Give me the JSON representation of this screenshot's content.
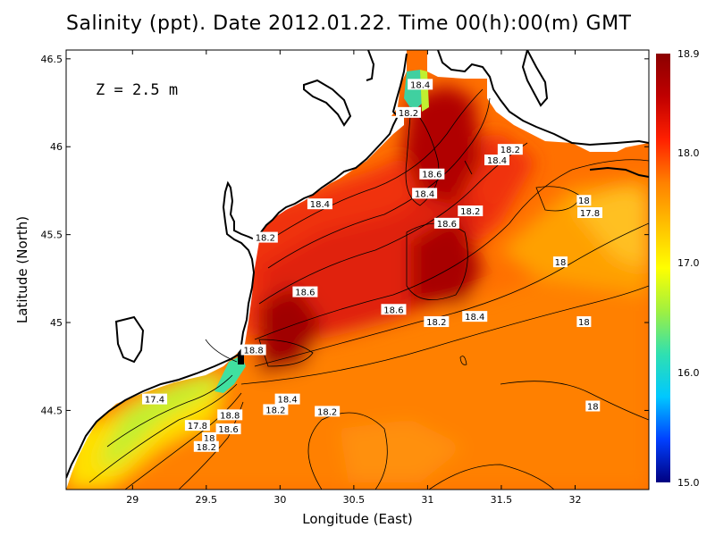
{
  "chart_data": {
    "type": "heatmap",
    "title": "Salinity (ppt). Date 2012.01.22. Time 00(h):00(m) GMT",
    "xlabel": "Longitude (East)",
    "ylabel": "Latitude (North)",
    "annotation": "Z = 2.5 m",
    "xlim": [
      28.55,
      32.5
    ],
    "ylim": [
      44.05,
      46.55
    ],
    "x_ticks": [
      29,
      29.5,
      30,
      30.5,
      31,
      31.5,
      32
    ],
    "x_tick_labels": [
      "29",
      "29.5",
      "30",
      "30.5",
      "31",
      "31.5",
      "32"
    ],
    "y_ticks": [
      44.5,
      45,
      45.5,
      46,
      46.5
    ],
    "y_tick_labels": [
      "44.5",
      "45",
      "45.5",
      "46",
      "46.5"
    ],
    "colorbar": {
      "min": 15.0,
      "max": 18.9,
      "ticks": [
        15.0,
        16.0,
        17.0,
        18.0,
        18.9
      ],
      "tick_labels": [
        "15.0",
        "16.0",
        "17.0",
        "18.0",
        "18.9"
      ],
      "colors": [
        "#000080",
        "#0040ff",
        "#00c8ff",
        "#30e0b0",
        "#a0f040",
        "#ffff00",
        "#ffc000",
        "#ff8000",
        "#ff2000",
        "#c00000",
        "#8b0000"
      ]
    },
    "contour_labels": [
      {
        "text": "18.4",
        "lon": 30.95,
        "lat": 46.35
      },
      {
        "text": "18.2",
        "lon": 30.87,
        "lat": 46.19
      },
      {
        "text": "18.6",
        "lon": 31.03,
        "lat": 45.84
      },
      {
        "text": "18.4",
        "lon": 30.98,
        "lat": 45.73
      },
      {
        "text": "18.2",
        "lon": 31.56,
        "lat": 45.98
      },
      {
        "text": "18.4",
        "lon": 31.47,
        "lat": 45.92
      },
      {
        "text": "18.4",
        "lon": 30.27,
        "lat": 45.67
      },
      {
        "text": "18.2",
        "lon": 29.9,
        "lat": 45.48
      },
      {
        "text": "18.6",
        "lon": 31.13,
        "lat": 45.56
      },
      {
        "text": "18.2",
        "lon": 31.29,
        "lat": 45.63
      },
      {
        "text": "18",
        "lon": 32.06,
        "lat": 45.69
      },
      {
        "text": "17.8",
        "lon": 32.1,
        "lat": 45.62
      },
      {
        "text": "18",
        "lon": 31.9,
        "lat": 45.34
      },
      {
        "text": "18.6",
        "lon": 30.17,
        "lat": 45.17
      },
      {
        "text": "18.6",
        "lon": 30.77,
        "lat": 45.07
      },
      {
        "text": "18.2",
        "lon": 31.06,
        "lat": 45.0
      },
      {
        "text": "18.4",
        "lon": 31.32,
        "lat": 45.03
      },
      {
        "text": "18",
        "lon": 32.06,
        "lat": 45.0
      },
      {
        "text": "18.8",
        "lon": 29.82,
        "lat": 44.84
      },
      {
        "text": "17.4",
        "lon": 29.15,
        "lat": 44.56
      },
      {
        "text": "18.4",
        "lon": 30.05,
        "lat": 44.56
      },
      {
        "text": "18.2",
        "lon": 29.97,
        "lat": 44.5
      },
      {
        "text": "18.2",
        "lon": 30.32,
        "lat": 44.49
      },
      {
        "text": "18.8",
        "lon": 29.66,
        "lat": 44.47
      },
      {
        "text": "17.8",
        "lon": 29.44,
        "lat": 44.41
      },
      {
        "text": "18.6",
        "lon": 29.65,
        "lat": 44.39
      },
      {
        "text": "18",
        "lon": 29.52,
        "lat": 44.34
      },
      {
        "text": "18.2",
        "lon": 29.5,
        "lat": 44.29
      },
      {
        "text": "18",
        "lon": 32.12,
        "lat": 44.52
      }
    ]
  }
}
